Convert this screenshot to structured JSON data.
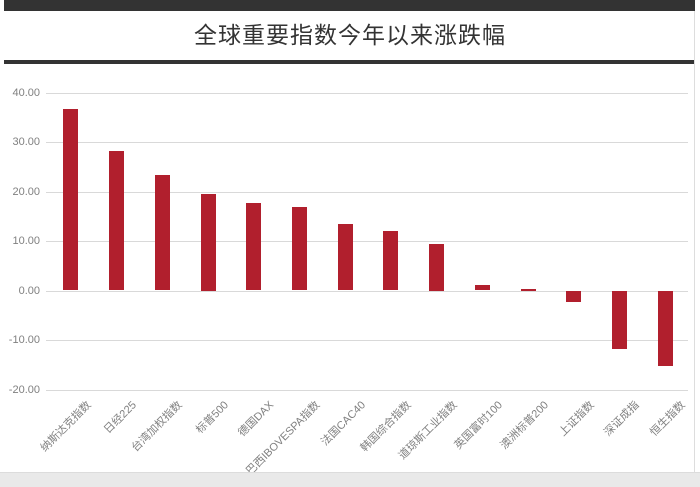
{
  "header": {
    "title": "全球重要指数今年以来涨跌幅"
  },
  "chart_data": {
    "type": "bar",
    "title": "全球重要指数今年以来涨跌幅",
    "categories": [
      "纳斯达克指数",
      "日经225",
      "台湾加权指数",
      "标普500",
      "德国DAX",
      "巴西IBOVESPA指数",
      "法国CAC40",
      "韩国综合指数",
      "道琼斯工业指数",
      "英国富时100",
      "澳洲标普200",
      "上证指数",
      "深证成指",
      "恒生指数"
    ],
    "values": [
      36.7,
      28.2,
      23.4,
      19.6,
      17.7,
      16.8,
      13.4,
      12.0,
      9.4,
      1.1,
      0.4,
      -2.3,
      -11.9,
      -15.2
    ],
    "xlabel": "",
    "ylabel": "",
    "ylim": [
      -20,
      40
    ],
    "ytick_interval": 10,
    "ytick_labels": [
      "40.00",
      "30.00",
      "20.00",
      "10.00",
      "0.00",
      "-10.00",
      "-20.00"
    ],
    "grid": true,
    "legend": false,
    "bar_color": "#b11f2d"
  },
  "colors": {
    "accent_red": "#b11f2d",
    "header_bar": "#333333",
    "gridline": "#d9d9d9",
    "axis_text": "#808080",
    "footer_strip": "#e9e9e9"
  }
}
